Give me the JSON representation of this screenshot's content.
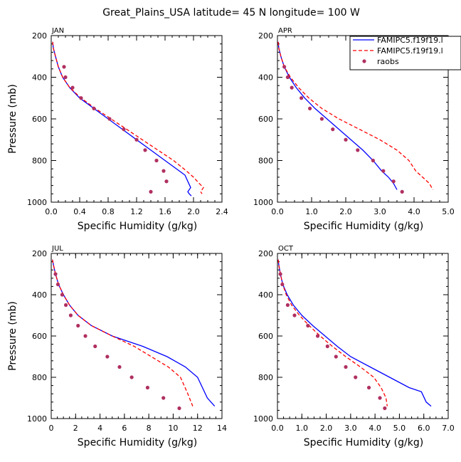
{
  "figure_title": "Great_Plains_USA  latitude= 45 N longitude= 100 W",
  "legend": {
    "entries": [
      "FAMIPC5.f19f19.l",
      "FAMIPC5.f19f19.l",
      "raobs"
    ],
    "colors": [
      "#0000ff",
      "#ff0000",
      "#b03060"
    ]
  },
  "chart_data": [
    {
      "type": "line",
      "month": "JAN",
      "xlabel": "Specific Humidity (g/kg)",
      "ylabel": "Pressure (mb)",
      "xlim": [
        0,
        2.4
      ],
      "ylim": [
        200,
        1000
      ],
      "xticks": [
        0,
        0.4,
        0.8,
        1.2,
        1.6,
        2.0,
        2.4
      ],
      "xtick_labels": [
        "0.0",
        "0.4",
        "0.8",
        "1.2",
        "1.6",
        "2.0",
        "2.4"
      ],
      "yticks": [
        200,
        400,
        600,
        800,
        1000
      ],
      "ytick_labels": [
        "200",
        "400",
        "600",
        "800",
        "1000"
      ],
      "series": [
        {
          "name": "FAMIPC5.f19f19.l",
          "style": "solid",
          "color": "#0000ff",
          "x": [
            0.02,
            0.03,
            0.06,
            0.1,
            0.16,
            0.26,
            0.4,
            0.6,
            0.8,
            1.0,
            1.2,
            1.4,
            1.6,
            1.8,
            1.88,
            1.92,
            1.96,
            1.92,
            1.94,
            1.97
          ],
          "y": [
            230,
            260,
            300,
            350,
            400,
            450,
            500,
            550,
            600,
            650,
            700,
            750,
            800,
            850,
            870,
            900,
            930,
            950,
            960,
            970
          ]
        },
        {
          "name": "FAMIPC5.f19f19.l",
          "style": "dashed",
          "color": "#ff0000",
          "x": [
            0.02,
            0.03,
            0.06,
            0.1,
            0.16,
            0.26,
            0.42,
            0.62,
            0.84,
            1.06,
            1.28,
            1.5,
            1.72,
            1.9,
            2.0,
            2.08,
            2.14,
            2.1,
            2.12
          ],
          "y": [
            230,
            260,
            300,
            350,
            400,
            450,
            500,
            550,
            600,
            650,
            700,
            750,
            800,
            850,
            880,
            910,
            930,
            950,
            960
          ]
        },
        {
          "name": "raobs",
          "style": "markers",
          "color": "#b03060",
          "x": [
            0.18,
            0.2,
            0.3,
            0.42,
            0.6,
            0.82,
            1.02,
            1.2,
            1.32,
            1.48,
            1.58,
            1.62,
            1.4
          ],
          "y": [
            350,
            400,
            450,
            500,
            550,
            600,
            650,
            700,
            750,
            800,
            850,
            900,
            950
          ]
        }
      ]
    },
    {
      "type": "line",
      "month": "APR",
      "xlabel": "Specific Humidity (g/kg)",
      "ylabel": "",
      "xlim": [
        0,
        5.0
      ],
      "ylim": [
        200,
        1000
      ],
      "xticks": [
        0,
        1,
        2,
        3,
        4,
        5
      ],
      "xtick_labels": [
        "0.0",
        "1.0",
        "2.0",
        "3.0",
        "4.0",
        "5.0"
      ],
      "yticks": [
        200,
        400,
        600,
        800,
        1000
      ],
      "ytick_labels": [
        "200",
        "400",
        "600",
        "800",
        "1000"
      ],
      "series": [
        {
          "name": "FAMIPC5.f19f19.l",
          "style": "solid",
          "color": "#0000ff",
          "x": [
            0.02,
            0.04,
            0.1,
            0.2,
            0.35,
            0.55,
            0.8,
            1.1,
            1.45,
            1.8,
            2.15,
            2.5,
            2.8,
            3.05,
            3.25,
            3.4,
            3.5
          ],
          "y": [
            230,
            260,
            300,
            350,
            400,
            450,
            500,
            550,
            600,
            650,
            700,
            750,
            800,
            850,
            880,
            910,
            940
          ]
        },
        {
          "name": "FAMIPC5.f19f19.l",
          "style": "dashed",
          "color": "#ff0000",
          "x": [
            0.02,
            0.04,
            0.1,
            0.2,
            0.38,
            0.62,
            0.92,
            1.3,
            1.8,
            2.4,
            3.0,
            3.5,
            3.85,
            4.05,
            4.25,
            4.45,
            4.55
          ],
          "y": [
            230,
            260,
            300,
            350,
            400,
            450,
            500,
            550,
            600,
            650,
            700,
            750,
            800,
            850,
            880,
            910,
            940
          ]
        },
        {
          "name": "raobs",
          "style": "markers",
          "color": "#b03060",
          "x": [
            0.2,
            0.3,
            0.42,
            0.7,
            0.95,
            1.3,
            1.62,
            2.0,
            2.35,
            2.8,
            3.1,
            3.4,
            3.65
          ],
          "y": [
            350,
            400,
            450,
            500,
            550,
            600,
            650,
            700,
            750,
            800,
            850,
            900,
            950
          ]
        }
      ]
    },
    {
      "type": "line",
      "month": "JUL",
      "xlabel": "Specific Humidity (g/kg)",
      "ylabel": "Pressure (mb)",
      "xlim": [
        0,
        14
      ],
      "ylim": [
        200,
        1000
      ],
      "xticks": [
        0,
        2,
        4,
        6,
        8,
        10,
        12,
        14
      ],
      "xtick_labels": [
        "0",
        "2",
        "4",
        "6",
        "8",
        "10",
        "12",
        "14"
      ],
      "yticks": [
        200,
        400,
        600,
        800,
        1000
      ],
      "ytick_labels": [
        "200",
        "400",
        "600",
        "800",
        "1000"
      ],
      "series": [
        {
          "name": "FAMIPC5.f19f19.l",
          "style": "solid",
          "color": "#0000ff",
          "x": [
            0.1,
            0.2,
            0.35,
            0.6,
            1.0,
            1.5,
            2.2,
            3.3,
            5.0,
            7.5,
            9.5,
            11.0,
            12.0,
            12.8,
            13.4
          ],
          "y": [
            230,
            260,
            300,
            350,
            400,
            450,
            500,
            550,
            600,
            650,
            700,
            750,
            800,
            900,
            940
          ]
        },
        {
          "name": "FAMIPC5.f19f19.l",
          "style": "dashed",
          "color": "#ff0000",
          "x": [
            0.1,
            0.2,
            0.35,
            0.6,
            1.0,
            1.5,
            2.2,
            3.3,
            5.0,
            6.8,
            8.2,
            9.6,
            10.6,
            11.2,
            11.6
          ],
          "y": [
            230,
            260,
            300,
            350,
            400,
            450,
            500,
            550,
            600,
            650,
            700,
            750,
            800,
            880,
            940
          ]
        },
        {
          "name": "raobs",
          "style": "markers",
          "color": "#b03060",
          "x": [
            0.35,
            0.55,
            0.9,
            1.2,
            1.6,
            2.2,
            2.8,
            3.6,
            4.6,
            5.6,
            6.6,
            7.9,
            9.2,
            10.5
          ],
          "y": [
            300,
            350,
            400,
            450,
            500,
            550,
            600,
            650,
            700,
            750,
            800,
            850,
            900,
            950
          ]
        }
      ]
    },
    {
      "type": "line",
      "month": "OCT",
      "xlabel": "Specific Humidity (g/kg)",
      "ylabel": "",
      "xlim": [
        0,
        7.0
      ],
      "ylim": [
        200,
        1000
      ],
      "xticks": [
        0,
        1,
        2,
        3,
        4,
        5,
        6,
        7
      ],
      "xtick_labels": [
        "0.0",
        "1.0",
        "2.0",
        "3.0",
        "4.0",
        "5.0",
        "6.0",
        "7.0"
      ],
      "yticks": [
        200,
        400,
        600,
        800,
        1000
      ],
      "ytick_labels": [
        "200",
        "400",
        "600",
        "800",
        "1000"
      ],
      "series": [
        {
          "name": "FAMIPC5.f19f19.l",
          "style": "solid",
          "color": "#0000ff",
          "x": [
            0.03,
            0.06,
            0.12,
            0.22,
            0.4,
            0.65,
            1.0,
            1.45,
            1.95,
            2.45,
            3.0,
            3.8,
            4.6,
            5.4,
            5.9,
            6.1,
            6.3
          ],
          "y": [
            230,
            260,
            300,
            350,
            400,
            450,
            500,
            550,
            600,
            650,
            700,
            750,
            800,
            850,
            870,
            920,
            940
          ]
        },
        {
          "name": "FAMIPC5.f19f19.l",
          "style": "dashed",
          "color": "#ff0000",
          "x": [
            0.03,
            0.06,
            0.12,
            0.22,
            0.36,
            0.58,
            0.9,
            1.3,
            1.75,
            2.25,
            2.8,
            3.4,
            3.95,
            4.25,
            4.45,
            4.5
          ],
          "y": [
            230,
            260,
            300,
            350,
            400,
            450,
            500,
            550,
            600,
            650,
            700,
            750,
            800,
            850,
            900,
            940
          ]
        },
        {
          "name": "raobs",
          "style": "markers",
          "color": "#b03060",
          "x": [
            0.12,
            0.2,
            0.42,
            0.7,
            1.25,
            1.65,
            2.05,
            2.4,
            2.8,
            3.2,
            3.75,
            4.2,
            4.4
          ],
          "y": [
            300,
            350,
            450,
            500,
            550,
            600,
            650,
            700,
            750,
            800,
            850,
            900,
            950
          ]
        }
      ]
    }
  ]
}
